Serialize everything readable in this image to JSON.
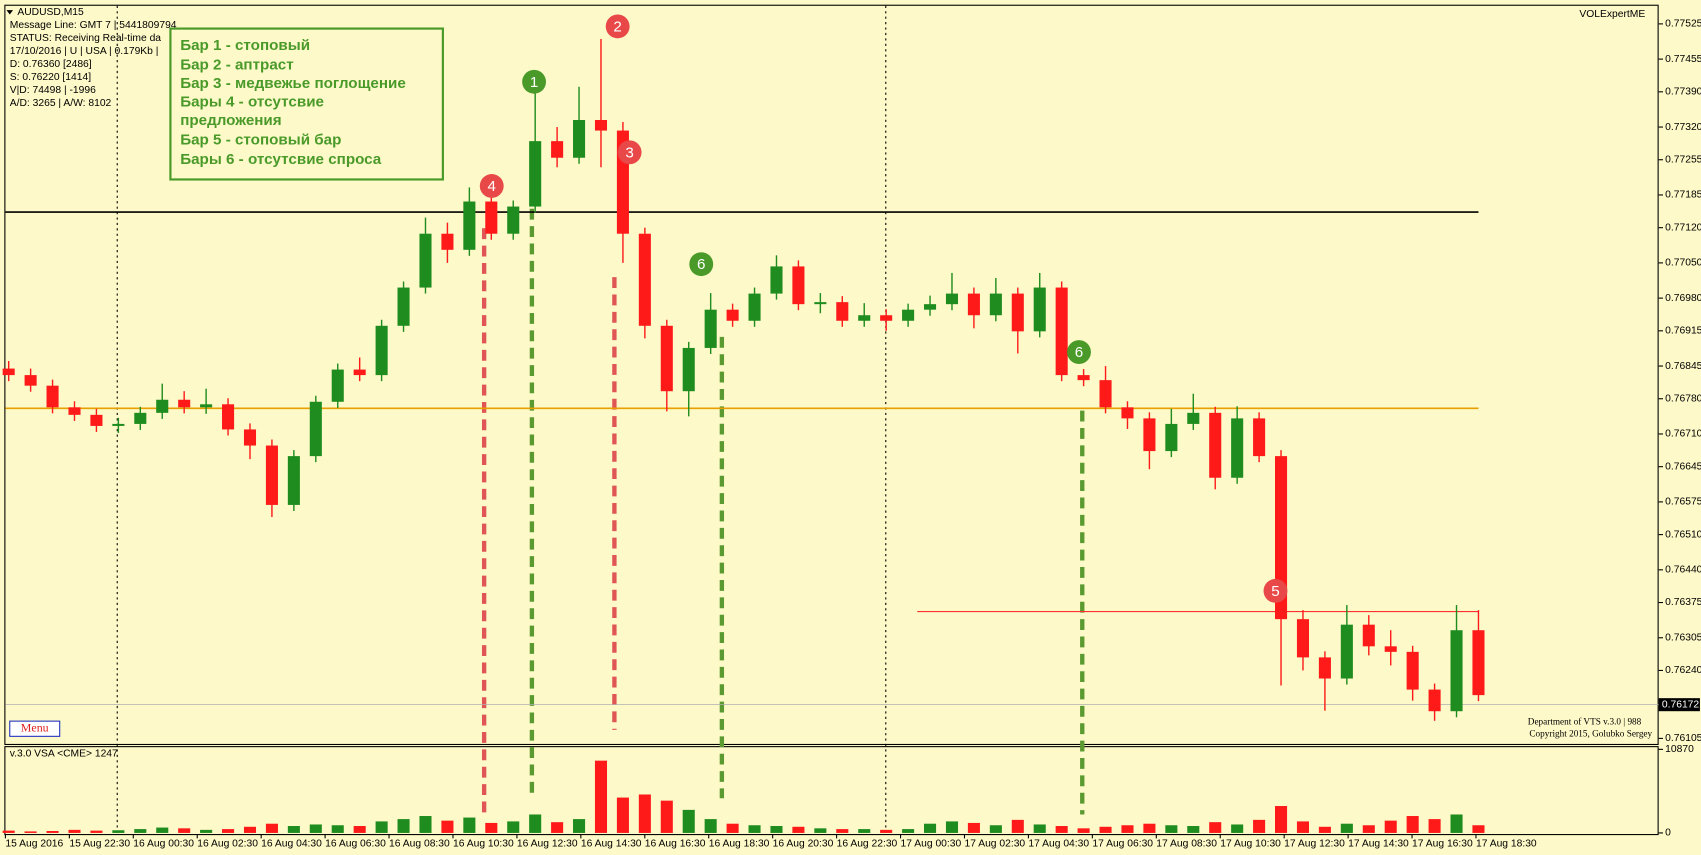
{
  "chart_data": {
    "type": "candlestick",
    "symbol": "AUDUSD,M15",
    "info": [
      "Message Line: GMT 7 | 5441809794",
      "STATUS:  Receiving Real-time da",
      "17/10/2016 | U | USA | 0.179Kb |",
      "D: 0.76360  [2486]",
      "S: 0.76220  [1414]",
      "V|D: 74498 | -1996",
      "A/D: 3265 | A/W: 8102"
    ],
    "indicator": "VOLExpertME",
    "legend_lines": [
      "Бар 1 - стоповый",
      "Бар 2 - аптраст",
      "Бар 3 - медвежье поглощение",
      "Бары 4 - отсутсвие",
      "предложения",
      "Бар 5 - стоповый бар",
      "Бары 6 - отсутсвие спроса"
    ],
    "annotations": [
      "4",
      "1",
      "2",
      "3",
      "6",
      "6",
      "5"
    ],
    "menu": "Menu",
    "footer": [
      "Department of VTS  v.3.0 | 988",
      "Copyright 2015, Golubko Sergey"
    ],
    "volume_title": "v.3.0 VSA <CME> 1247",
    "up_color": "#1e8c1e",
    "down_color": "#ff1a1a",
    "x_labels": [
      "15 Aug 2016",
      "15 Aug 22:30",
      "16 Aug 00:30",
      "16 Aug 02:30",
      "16 Aug 04:30",
      "16 Aug 06:30",
      "16 Aug 08:30",
      "16 Aug 10:30",
      "16 Aug 12:30",
      "16 Aug 14:30",
      "16 Aug 16:30",
      "16 Aug 18:30",
      "16 Aug 20:30",
      "16 Aug 22:30",
      "17 Aug 00:30",
      "17 Aug 02:30",
      "17 Aug 04:30",
      "17 Aug 06:30",
      "17 Aug 08:30",
      "17 Aug 10:30",
      "17 Aug 12:30",
      "17 Aug 14:30",
      "17 Aug 16:30",
      "17 Aug 18:30"
    ],
    "open": [
      0.7684,
      0.76827,
      0.76806,
      0.76763,
      0.76748,
      0.76726,
      0.7673,
      0.76752,
      0.76778,
      0.76763,
      0.76769,
      0.76719,
      0.76687,
      0.76569,
      0.76666,
      0.76774,
      0.76838,
      0.76827,
      0.76925,
      0.77001,
      0.77108,
      0.77076,
      0.77172,
      0.77108,
      0.77162,
      0.77292,
      0.77259,
      0.77334,
      0.77313,
      0.77108,
      0.76925,
      0.76795,
      0.76881,
      0.76957,
      0.76935,
      0.76989,
      0.77043,
      0.76968,
      0.76972,
      0.76935,
      0.76946,
      0.76935,
      0.76957,
      0.76968,
      0.76989,
      0.76946,
      0.76989,
      0.76914,
      0.77001,
      0.76827,
      0.76817,
      0.76763,
      0.76741,
      0.76676,
      0.7673,
      0.76752,
      0.76623,
      0.76741,
      0.76666,
      0.76342,
      0.76266,
      0.76224,
      0.76331,
      0.76288,
      0.76277,
      0.76202,
      0.76159,
      0.7632
    ],
    "high": [
      0.76855,
      0.7684,
      0.76818,
      0.76775,
      0.7676,
      0.76742,
      0.76764,
      0.7681,
      0.76795,
      0.768,
      0.76781,
      0.76731,
      0.76699,
      0.76678,
      0.76786,
      0.7685,
      0.76862,
      0.76937,
      0.77013,
      0.7714,
      0.7713,
      0.772,
      0.7719,
      0.77174,
      0.774,
      0.7732,
      0.774,
      0.77495,
      0.7733,
      0.7712,
      0.76937,
      0.76893,
      0.7699,
      0.76969,
      0.77001,
      0.77065,
      0.77055,
      0.7699,
      0.76984,
      0.7697,
      0.76958,
      0.76969,
      0.76985,
      0.7703,
      0.77001,
      0.7702,
      0.77001,
      0.7703,
      0.77013,
      0.76839,
      0.76845,
      0.76775,
      0.76753,
      0.7676,
      0.7679,
      0.76764,
      0.76765,
      0.76753,
      0.76678,
      0.7636,
      0.76278,
      0.7637,
      0.7635,
      0.7632,
      0.76289,
      0.76214,
      0.7637,
      0.7636
    ],
    "low": [
      0.76815,
      0.76794,
      0.76751,
      0.76736,
      0.76714,
      0.76712,
      0.76718,
      0.7674,
      0.76751,
      0.7675,
      0.76707,
      0.7666,
      0.76545,
      0.76557,
      0.76654,
      0.76762,
      0.76815,
      0.76815,
      0.76913,
      0.76989,
      0.7705,
      0.77064,
      0.77096,
      0.77096,
      0.7715,
      0.7724,
      0.77247,
      0.7724,
      0.7705,
      0.769,
      0.76755,
      0.76745,
      0.76869,
      0.76923,
      0.76923,
      0.76977,
      0.76956,
      0.7695,
      0.76923,
      0.76923,
      0.76915,
      0.76923,
      0.76945,
      0.76956,
      0.7692,
      0.76934,
      0.7687,
      0.76902,
      0.76815,
      0.76805,
      0.76751,
      0.7672,
      0.7664,
      0.76664,
      0.76718,
      0.766,
      0.76611,
      0.76654,
      0.7621,
      0.7624,
      0.7616,
      0.76212,
      0.7627,
      0.7625,
      0.7618,
      0.7614,
      0.76147,
      0.76179
    ],
    "close": [
      0.76827,
      0.76806,
      0.76763,
      0.76748,
      0.76726,
      0.7673,
      0.76752,
      0.76778,
      0.76763,
      0.76769,
      0.76719,
      0.76687,
      0.76569,
      0.76666,
      0.76774,
      0.76838,
      0.76827,
      0.76925,
      0.77001,
      0.77108,
      0.77076,
      0.77172,
      0.77108,
      0.77162,
      0.77292,
      0.77259,
      0.77334,
      0.77313,
      0.77108,
      0.76925,
      0.76795,
      0.76881,
      0.76957,
      0.76935,
      0.76989,
      0.77043,
      0.76968,
      0.76972,
      0.76935,
      0.76946,
      0.76935,
      0.76957,
      0.76968,
      0.76989,
      0.76946,
      0.76989,
      0.76914,
      0.77001,
      0.76827,
      0.76817,
      0.76763,
      0.76741,
      0.76676,
      0.7673,
      0.76752,
      0.76623,
      0.76741,
      0.76666,
      0.76342,
      0.76266,
      0.76224,
      0.76331,
      0.76288,
      0.76277,
      0.76202,
      0.76159,
      0.7632,
      0.76191
    ],
    "volume": [
      300,
      200,
      250,
      400,
      300,
      350,
      500,
      700,
      600,
      400,
      500,
      800,
      1200,
      900,
      1100,
      1000,
      900,
      1500,
      1800,
      2200,
      1600,
      2000,
      1300,
      1500,
      2400,
      1400,
      1800,
      9400,
      4600,
      5000,
      4200,
      3000,
      1800,
      1200,
      1000,
      900,
      800,
      600,
      500,
      500,
      400,
      500,
      1200,
      1500,
      1300,
      1000,
      1700,
      1100,
      900,
      600,
      800,
      1000,
      1200,
      1000,
      900,
      1400,
      1100,
      1700,
      3500,
      1500,
      800,
      1200,
      1000,
      1600,
      2200,
      1800,
      2400,
      1000
    ],
    "ylim": [
      0.76094,
      0.77561
    ],
    "yticks": [
      0.77525,
      0.77455,
      {
        "value": 0.7739,
        "label": "0.77390"
      },
      {
        "value": 0.7732,
        "label": "0.77320"
      },
      0.77255,
      0.77185,
      {
        "value": 0.7712,
        "label": "0.77120"
      },
      {
        "value": 0.7705,
        "label": "0.77050"
      },
      {
        "value": 0.7698,
        "label": "0.76980"
      },
      0.76915,
      0.76845,
      {
        "value": 0.7678,
        "label": "0.76780"
      },
      {
        "value": 0.7671,
        "label": "0.76710"
      },
      0.76645,
      0.76575,
      {
        "value": 0.7651,
        "label": "0.76510"
      },
      {
        "value": 0.7644,
        "label": "0.76440"
      },
      0.76375,
      0.76305,
      {
        "value": 0.7624,
        "label": "0.76240"
      },
      0.76105
    ],
    "current_price": 0.76172,
    "levels": [
      {
        "value": 0.77151,
        "color": "#000000"
      },
      {
        "value": 0.76761,
        "color": "#e8a000"
      },
      {
        "value": 0.76357,
        "color": "#ff3030"
      }
    ],
    "y2lim": [
      0,
      10870
    ],
    "y2ticks": [
      0,
      10870
    ]
  }
}
